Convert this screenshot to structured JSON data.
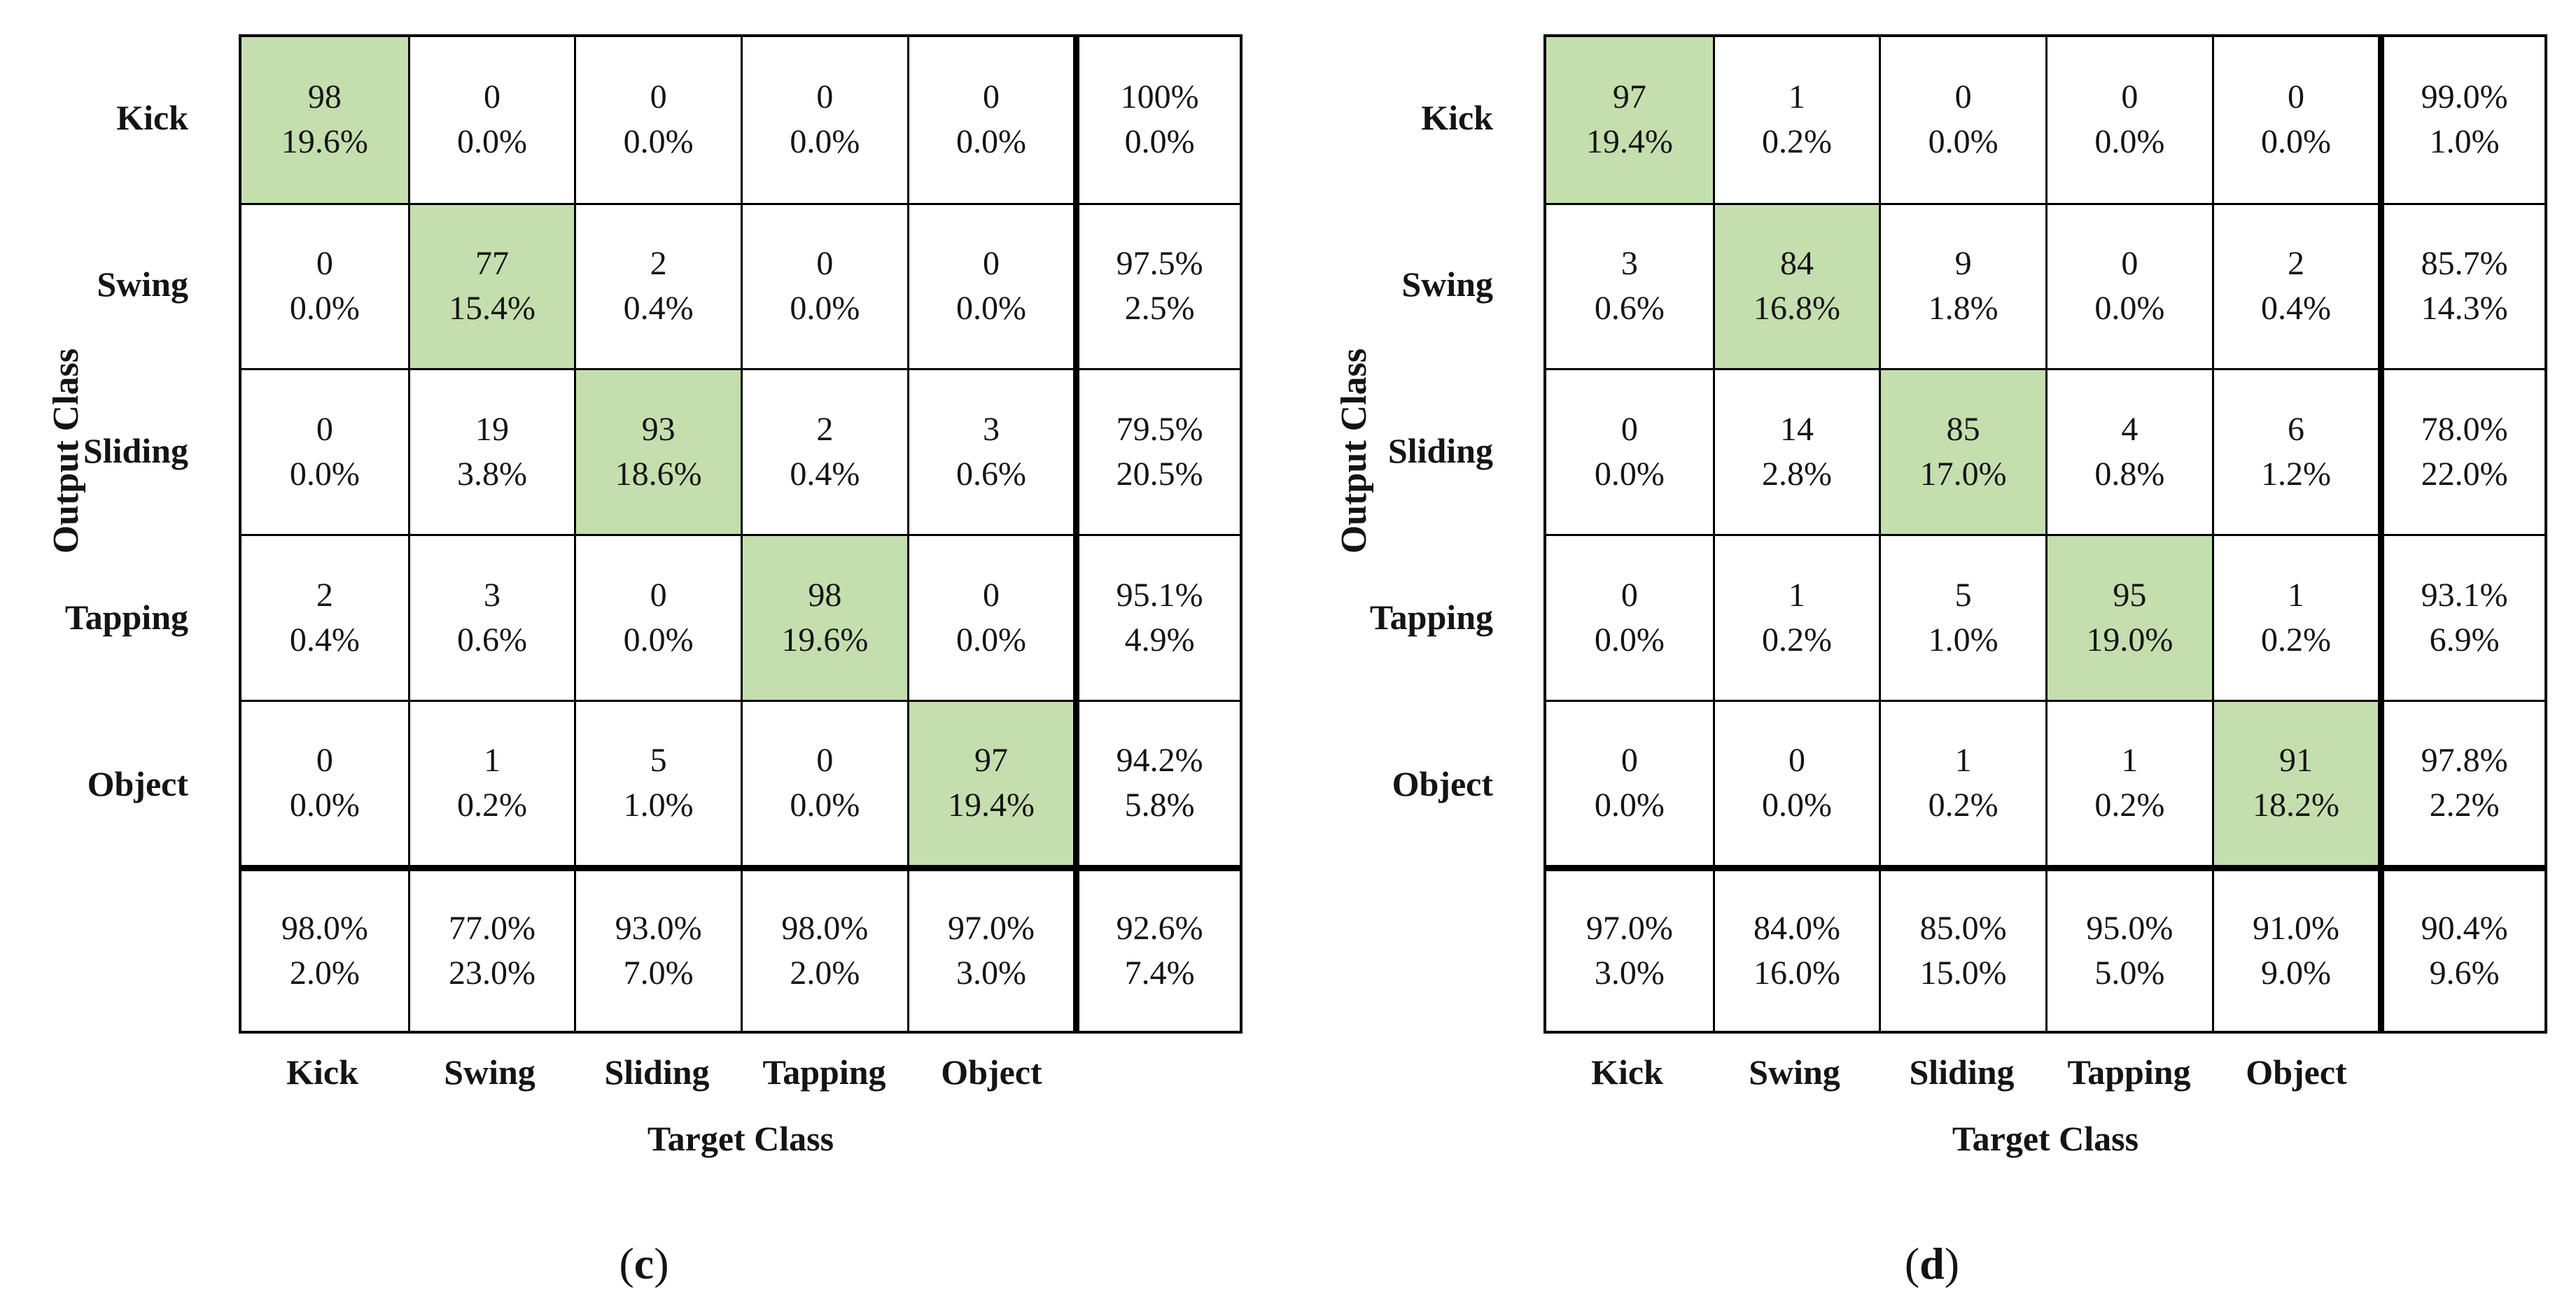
{
  "colors": {
    "diagonal_green": "#c5deae",
    "border": "#000000",
    "text": "#141414",
    "background": "#ffffff"
  },
  "chart_data": [
    {
      "type": "heatmap",
      "subtype": "confusion-matrix",
      "caption_open": "(",
      "caption_letter": "c",
      "caption_close": ")",
      "xlabel": "Target Class",
      "ylabel": "Output Class",
      "classes": [
        "Kick",
        "Swing",
        "Sliding",
        "Tapping",
        "Object"
      ],
      "cells": [
        [
          {
            "count": "98",
            "pct": "19.6%"
          },
          {
            "count": "0",
            "pct": "0.0%"
          },
          {
            "count": "0",
            "pct": "0.0%"
          },
          {
            "count": "0",
            "pct": "0.0%"
          },
          {
            "count": "0",
            "pct": "0.0%"
          }
        ],
        [
          {
            "count": "0",
            "pct": "0.0%"
          },
          {
            "count": "77",
            "pct": "15.4%"
          },
          {
            "count": "2",
            "pct": "0.4%"
          },
          {
            "count": "0",
            "pct": "0.0%"
          },
          {
            "count": "0",
            "pct": "0.0%"
          }
        ],
        [
          {
            "count": "0",
            "pct": "0.0%"
          },
          {
            "count": "19",
            "pct": "3.8%"
          },
          {
            "count": "93",
            "pct": "18.6%"
          },
          {
            "count": "2",
            "pct": "0.4%"
          },
          {
            "count": "3",
            "pct": "0.6%"
          }
        ],
        [
          {
            "count": "2",
            "pct": "0.4%"
          },
          {
            "count": "3",
            "pct": "0.6%"
          },
          {
            "count": "0",
            "pct": "0.0%"
          },
          {
            "count": "98",
            "pct": "19.6%"
          },
          {
            "count": "0",
            "pct": "0.0%"
          }
        ],
        [
          {
            "count": "0",
            "pct": "0.0%"
          },
          {
            "count": "1",
            "pct": "0.2%"
          },
          {
            "count": "5",
            "pct": "1.0%"
          },
          {
            "count": "0",
            "pct": "0.0%"
          },
          {
            "count": "97",
            "pct": "19.4%"
          }
        ]
      ],
      "row_summary": [
        [
          "100%",
          "0.0%"
        ],
        [
          "97.5%",
          "2.5%"
        ],
        [
          "79.5%",
          "20.5%"
        ],
        [
          "95.1%",
          "4.9%"
        ],
        [
          "94.2%",
          "5.8%"
        ]
      ],
      "col_summary": [
        [
          "98.0%",
          "2.0%"
        ],
        [
          "77.0%",
          "23.0%"
        ],
        [
          "93.0%",
          "7.0%"
        ],
        [
          "98.0%",
          "2.0%"
        ],
        [
          "97.0%",
          "3.0%"
        ]
      ],
      "overall": [
        "92.6%",
        "7.4%"
      ]
    },
    {
      "type": "heatmap",
      "subtype": "confusion-matrix",
      "caption_open": "(",
      "caption_letter": "d",
      "caption_close": ")",
      "xlabel": "Target Class",
      "ylabel": "Output Class",
      "classes": [
        "Kick",
        "Swing",
        "Sliding",
        "Tapping",
        "Object"
      ],
      "cells": [
        [
          {
            "count": "97",
            "pct": "19.4%"
          },
          {
            "count": "1",
            "pct": "0.2%"
          },
          {
            "count": "0",
            "pct": "0.0%"
          },
          {
            "count": "0",
            "pct": "0.0%"
          },
          {
            "count": "0",
            "pct": "0.0%"
          }
        ],
        [
          {
            "count": "3",
            "pct": "0.6%"
          },
          {
            "count": "84",
            "pct": "16.8%"
          },
          {
            "count": "9",
            "pct": "1.8%"
          },
          {
            "count": "0",
            "pct": "0.0%"
          },
          {
            "count": "2",
            "pct": "0.4%"
          }
        ],
        [
          {
            "count": "0",
            "pct": "0.0%"
          },
          {
            "count": "14",
            "pct": "2.8%"
          },
          {
            "count": "85",
            "pct": "17.0%"
          },
          {
            "count": "4",
            "pct": "0.8%"
          },
          {
            "count": "6",
            "pct": "1.2%"
          }
        ],
        [
          {
            "count": "0",
            "pct": "0.0%"
          },
          {
            "count": "1",
            "pct": "0.2%"
          },
          {
            "count": "5",
            "pct": "1.0%"
          },
          {
            "count": "95",
            "pct": "19.0%"
          },
          {
            "count": "1",
            "pct": "0.2%"
          }
        ],
        [
          {
            "count": "0",
            "pct": "0.0%"
          },
          {
            "count": "0",
            "pct": "0.0%"
          },
          {
            "count": "1",
            "pct": "0.2%"
          },
          {
            "count": "1",
            "pct": "0.2%"
          },
          {
            "count": "91",
            "pct": "18.2%"
          }
        ]
      ],
      "row_summary": [
        [
          "99.0%",
          "1.0%"
        ],
        [
          "85.7%",
          "14.3%"
        ],
        [
          "78.0%",
          "22.0%"
        ],
        [
          "93.1%",
          "6.9%"
        ],
        [
          "97.8%",
          "2.2%"
        ]
      ],
      "col_summary": [
        [
          "97.0%",
          "3.0%"
        ],
        [
          "84.0%",
          "16.0%"
        ],
        [
          "85.0%",
          "15.0%"
        ],
        [
          "95.0%",
          "5.0%"
        ],
        [
          "91.0%",
          "9.0%"
        ]
      ],
      "overall": [
        "90.4%",
        "9.6%"
      ]
    }
  ]
}
